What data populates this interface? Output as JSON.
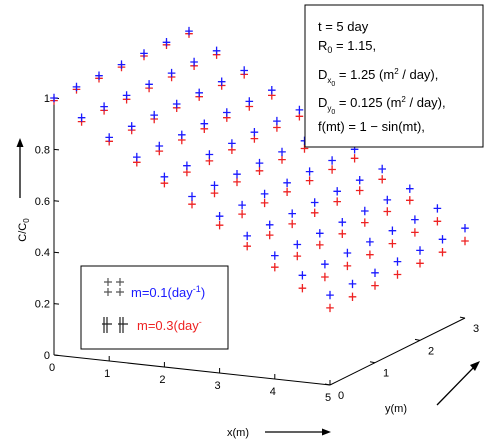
{
  "chart_data": {
    "type": "scatter",
    "title": "",
    "xlabel": "x(m)",
    "ylabel": "y(m)",
    "zlabel": "C/C0",
    "x_ticks": [
      "0",
      "1",
      "2",
      "3",
      "4",
      "5"
    ],
    "y_ticks": [
      "0",
      "1",
      "2",
      "3"
    ],
    "z_ticks": [
      "0",
      "0.2",
      "0.4",
      "0.6",
      "0.8",
      "1"
    ],
    "xlim": [
      0,
      5
    ],
    "ylim": [
      0,
      3
    ],
    "zlim": [
      0,
      1
    ],
    "x_grid": [
      0,
      0.5,
      1.0,
      1.5,
      2.0,
      2.5,
      3.0,
      3.5,
      4.0,
      4.5,
      5.0
    ],
    "y_grid": [
      0,
      0.5,
      1.0,
      1.5,
      2.0,
      2.5,
      3.0
    ],
    "series": [
      {
        "name": "m=0.1(day-1)",
        "color": "#1a1aff",
        "marker": "plus",
        "values_by_x": [
          1.0,
          0.935,
          0.87,
          0.805,
          0.74,
          0.675,
          0.61,
          0.545,
          0.48,
          0.415,
          0.35
        ]
      },
      {
        "name": "m=0.3(day-",
        "color": "#ee2222",
        "marker": "plus",
        "values_by_x": [
          0.99,
          0.92,
          0.855,
          0.785,
          0.715,
          0.645,
          0.575,
          0.505,
          0.435,
          0.365,
          0.3
        ]
      }
    ],
    "annotation": {
      "t": "t = 5 day",
      "R0": "R0 = 1.15,",
      "Dx0": "Dx0 = 1.25 (m2 / day),",
      "Dy0": "Dy0 = 0.125 (m2 / day),",
      "f": "f(mt) = 1 - sin(mt),"
    },
    "legend": {
      "position": "lower-left",
      "entries": [
        {
          "prefix": "m=0.1(day",
          "sup": "-1",
          "suffix": ")",
          "color": "#1a1aff"
        },
        {
          "prefix": "m=0.3(day",
          "sup": "-",
          "suffix": "",
          "color": "#ee2222"
        }
      ]
    }
  }
}
